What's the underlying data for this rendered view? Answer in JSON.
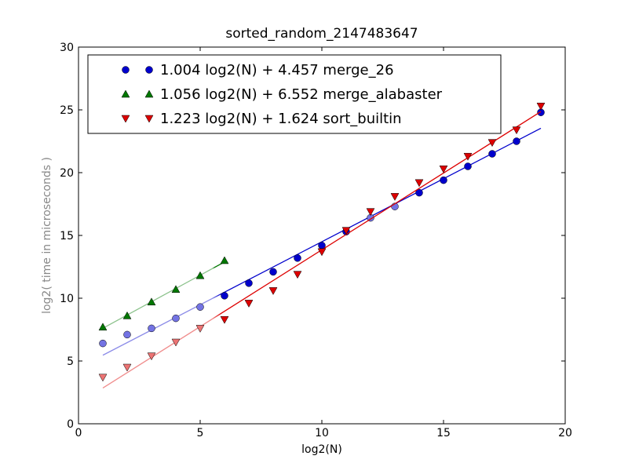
{
  "chart_data": {
    "type": "scatter",
    "title": "sorted_random_2147483647",
    "xlabel": "log2(N)",
    "ylabel": "log2( time in microseconds )",
    "xlim": [
      0,
      20
    ],
    "ylim": [
      0,
      30
    ],
    "xticks": [
      0,
      5,
      10,
      15,
      20
    ],
    "yticks": [
      0,
      5,
      10,
      15,
      20,
      25,
      30
    ],
    "grid": false,
    "legend_position": "top-left",
    "series": [
      {
        "name": "1.004 log2(N) + 4.457 merge_26",
        "color": "#0000cc",
        "marker": "circle",
        "x": [
          1,
          2,
          3,
          4,
          5,
          6,
          7,
          8,
          9,
          10,
          11,
          12,
          13,
          14,
          15,
          16,
          17,
          18,
          19
        ],
        "y": [
          6.4,
          7.1,
          7.6,
          8.4,
          9.3,
          10.2,
          11.2,
          12.1,
          13.2,
          14.2,
          15.3,
          16.4,
          17.3,
          18.4,
          19.4,
          20.5,
          21.5,
          22.5,
          24.8
        ],
        "fit": {
          "slope": 1.004,
          "intercept": 4.457,
          "x_range": [
            1,
            19
          ]
        }
      },
      {
        "name": "1.056 log2(N) + 6.552 merge_alabaster",
        "color": "#007700",
        "marker": "triangle-up",
        "x": [
          1,
          2,
          3,
          4,
          5,
          6
        ],
        "y": [
          7.7,
          8.6,
          9.7,
          10.7,
          11.8,
          13.0
        ],
        "fit": {
          "slope": 1.056,
          "intercept": 6.552,
          "x_range": [
            1,
            6
          ]
        }
      },
      {
        "name": "1.223 log2(N) + 1.624 sort_builtin",
        "color": "#dd0000",
        "marker": "triangle-down",
        "x": [
          1,
          2,
          3,
          4,
          5,
          6,
          7,
          8,
          9,
          10,
          11,
          12,
          13,
          14,
          15,
          16,
          17,
          18,
          19
        ],
        "y": [
          3.7,
          4.5,
          5.4,
          6.5,
          7.6,
          8.3,
          9.6,
          10.6,
          11.9,
          13.7,
          15.4,
          16.9,
          18.1,
          19.2,
          20.3,
          21.3,
          22.4,
          23.4,
          25.3
        ],
        "fit": {
          "slope": 1.223,
          "intercept": 1.624,
          "x_range": [
            1,
            19
          ]
        }
      }
    ]
  }
}
